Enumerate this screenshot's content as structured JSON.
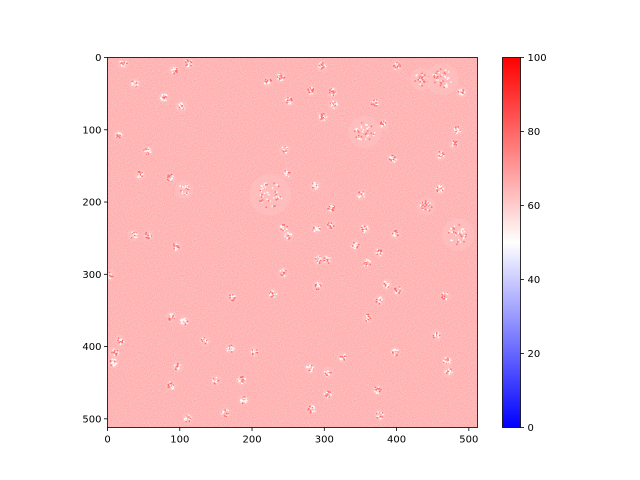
{
  "chart_data": {
    "type": "heatmap",
    "title": "",
    "xlabel": "",
    "ylabel": "",
    "x_range": [
      0,
      511
    ],
    "y_range": [
      0,
      511
    ],
    "y_inverted": true,
    "x_ticks": [
      0,
      100,
      200,
      300,
      400,
      500
    ],
    "y_ticks": [
      0,
      100,
      200,
      300,
      400,
      500
    ],
    "colorbar": {
      "colormap": "bwr",
      "vmin": 0,
      "vmax": 100,
      "ticks": [
        0,
        20,
        40,
        60,
        80,
        100
      ],
      "colors": {
        "low": "#0000ff",
        "mid": "#ffffff",
        "high": "#ff0000"
      }
    },
    "background_value": 65,
    "clusters": [
      {
        "x": 22,
        "y": 8
      },
      {
        "x": 92,
        "y": 18
      },
      {
        "x": 112,
        "y": 8
      },
      {
        "x": 38,
        "y": 36
      },
      {
        "x": 78,
        "y": 55
      },
      {
        "x": 102,
        "y": 68
      },
      {
        "x": 222,
        "y": 34
      },
      {
        "x": 240,
        "y": 27
      },
      {
        "x": 251,
        "y": 60
      },
      {
        "x": 282,
        "y": 46
      },
      {
        "x": 297,
        "y": 12
      },
      {
        "x": 311,
        "y": 48
      },
      {
        "x": 313,
        "y": 65
      },
      {
        "x": 298,
        "y": 82
      },
      {
        "x": 401,
        "y": 12
      },
      {
        "x": 15,
        "y": 108
      },
      {
        "x": 55,
        "y": 130
      },
      {
        "x": 45,
        "y": 162
      },
      {
        "x": 356,
        "y": 103,
        "r": 14
      },
      {
        "x": 370,
        "y": 63
      },
      {
        "x": 382,
        "y": 93
      },
      {
        "x": 461,
        "y": 135
      },
      {
        "x": 484,
        "y": 100
      },
      {
        "x": 480,
        "y": 120
      },
      {
        "x": 245,
        "y": 128
      },
      {
        "x": 248,
        "y": 160
      },
      {
        "x": 87,
        "y": 166
      },
      {
        "x": 106,
        "y": 183,
        "r": 8
      },
      {
        "x": 287,
        "y": 178
      },
      {
        "x": 351,
        "y": 190
      },
      {
        "x": 395,
        "y": 140
      },
      {
        "x": 460,
        "y": 182
      },
      {
        "x": 441,
        "y": 206,
        "r": 8
      },
      {
        "x": 435,
        "y": 30,
        "r": 10
      },
      {
        "x": 463,
        "y": 30,
        "r": 14
      },
      {
        "x": 490,
        "y": 48
      },
      {
        "x": 225,
        "y": 190,
        "r": 18
      },
      {
        "x": 36,
        "y": 246
      },
      {
        "x": 56,
        "y": 246
      },
      {
        "x": 95,
        "y": 262
      },
      {
        "x": 244,
        "y": 236
      },
      {
        "x": 250,
        "y": 247
      },
      {
        "x": 289,
        "y": 237
      },
      {
        "x": 310,
        "y": 209
      },
      {
        "x": 309,
        "y": 232
      },
      {
        "x": 343,
        "y": 260
      },
      {
        "x": 356,
        "y": 237
      },
      {
        "x": 376,
        "y": 270
      },
      {
        "x": 399,
        "y": 244
      },
      {
        "x": 485,
        "y": 245,
        "r": 14
      },
      {
        "x": 3,
        "y": 301
      },
      {
        "x": 243,
        "y": 298
      },
      {
        "x": 292,
        "y": 280
      },
      {
        "x": 304,
        "y": 280
      },
      {
        "x": 359,
        "y": 285
      },
      {
        "x": 291,
        "y": 316
      },
      {
        "x": 386,
        "y": 314
      },
      {
        "x": 402,
        "y": 322
      },
      {
        "x": 172,
        "y": 332
      },
      {
        "x": 229,
        "y": 327
      },
      {
        "x": 376,
        "y": 336
      },
      {
        "x": 467,
        "y": 330
      },
      {
        "x": 88,
        "y": 359
      },
      {
        "x": 106,
        "y": 365
      },
      {
        "x": 360,
        "y": 360
      },
      {
        "x": 18,
        "y": 392
      },
      {
        "x": 10,
        "y": 408
      },
      {
        "x": 8,
        "y": 422
      },
      {
        "x": 135,
        "y": 392
      },
      {
        "x": 170,
        "y": 403
      },
      {
        "x": 203,
        "y": 407
      },
      {
        "x": 326,
        "y": 415
      },
      {
        "x": 398,
        "y": 408
      },
      {
        "x": 455,
        "y": 384
      },
      {
        "x": 470,
        "y": 420
      },
      {
        "x": 472,
        "y": 435
      },
      {
        "x": 97,
        "y": 428
      },
      {
        "x": 280,
        "y": 430
      },
      {
        "x": 305,
        "y": 436
      },
      {
        "x": 150,
        "y": 447
      },
      {
        "x": 186,
        "y": 446
      },
      {
        "x": 88,
        "y": 454
      },
      {
        "x": 374,
        "y": 460
      },
      {
        "x": 305,
        "y": 466
      },
      {
        "x": 188,
        "y": 474
      },
      {
        "x": 163,
        "y": 492
      },
      {
        "x": 111,
        "y": 500
      },
      {
        "x": 282,
        "y": 487
      },
      {
        "x": 377,
        "y": 495
      }
    ]
  }
}
